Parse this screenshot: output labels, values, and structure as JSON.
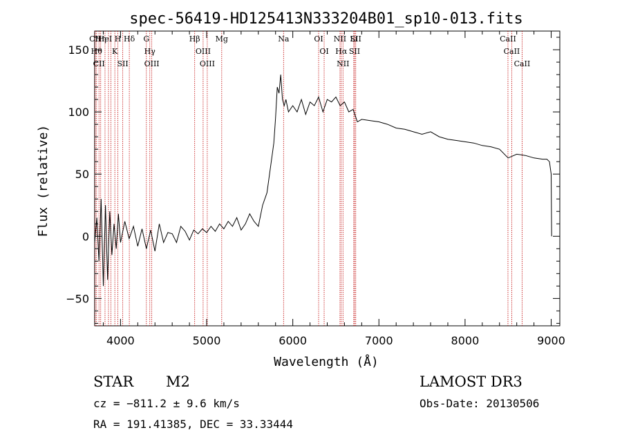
{
  "chart_data": {
    "type": "line",
    "title": "spec-56419-HD125413N333204B01_sp10-013.fits",
    "xlabel": "Wavelength (Å)",
    "ylabel": "Flux (relative)",
    "xlim": [
      3700,
      9100
    ],
    "ylim": [
      -72,
      165
    ],
    "xticks": [
      4000,
      5000,
      6000,
      7000,
      8000,
      9000
    ],
    "xtick_labels": [
      "4000",
      "5000",
      "6000",
      "7000",
      "8000",
      "9000"
    ],
    "yticks": [
      -50,
      0,
      50,
      100,
      150
    ],
    "ytick_labels": [
      "−50",
      "0",
      "50",
      "100",
      "150"
    ],
    "grid": false,
    "series": [
      {
        "color": "#000000",
        "x": [
          3700,
          3725,
          3750,
          3775,
          3800,
          3825,
          3850,
          3875,
          3900,
          3925,
          3950,
          3975,
          4000,
          4050,
          4100,
          4150,
          4200,
          4250,
          4300,
          4350,
          4400,
          4450,
          4500,
          4550,
          4600,
          4650,
          4700,
          4750,
          4800,
          4850,
          4900,
          4950,
          5000,
          5050,
          5100,
          5150,
          5200,
          5250,
          5300,
          5350,
          5400,
          5450,
          5500,
          5550,
          5600,
          5650,
          5700,
          5750,
          5780,
          5800,
          5820,
          5840,
          5860,
          5880,
          5900,
          5920,
          5950,
          6000,
          6050,
          6100,
          6150,
          6200,
          6250,
          6300,
          6350,
          6400,
          6450,
          6500,
          6550,
          6600,
          6650,
          6700,
          6750,
          6800,
          6900,
          7000,
          7100,
          7200,
          7300,
          7400,
          7500,
          7600,
          7700,
          7800,
          7900,
          8000,
          8100,
          8200,
          8300,
          8400,
          8500,
          8600,
          8700,
          8800,
          8900,
          8950,
          8980,
          9000,
          9005
        ],
        "y": [
          -5,
          15,
          -20,
          30,
          -40,
          25,
          -35,
          20,
          -15,
          10,
          -10,
          18,
          -5,
          12,
          -2,
          8,
          -8,
          6,
          -10,
          5,
          -12,
          10,
          -5,
          3,
          2,
          -5,
          8,
          4,
          -3,
          5,
          2,
          6,
          3,
          8,
          4,
          10,
          6,
          12,
          8,
          15,
          5,
          10,
          18,
          12,
          8,
          25,
          35,
          60,
          75,
          95,
          120,
          115,
          130,
          110,
          105,
          110,
          100,
          105,
          100,
          110,
          98,
          108,
          105,
          112,
          100,
          110,
          108,
          112,
          105,
          108,
          100,
          102,
          92,
          94,
          93,
          92,
          90,
          87,
          86,
          84,
          82,
          84,
          80,
          78,
          77,
          76,
          75,
          73,
          72,
          70,
          63,
          66,
          65,
          63,
          62,
          62,
          60,
          50,
          0
        ]
      }
    ],
    "lines": [
      {
        "wl": 3705,
        "label": "CII"
      },
      {
        "wl": 3722,
        "label": "Hθ"
      },
      {
        "wl": 3750,
        "label": "CII"
      },
      {
        "wl": 3770,
        "label": "Hη"
      },
      {
        "wl": 3820,
        "label": "HeI"
      },
      {
        "wl": 3860,
        "label": ""
      },
      {
        "wl": 3889,
        "label": ""
      },
      {
        "wl": 3934,
        "label": "K"
      },
      {
        "wl": 3969,
        "label": "H"
      },
      {
        "wl": 4026,
        "label": "SII"
      },
      {
        "wl": 4102,
        "label": "Hδ"
      },
      {
        "wl": 4300,
        "label": "G"
      },
      {
        "wl": 4340,
        "label": "Hγ"
      },
      {
        "wl": 4363,
        "label": "OIII"
      },
      {
        "wl": 4861,
        "label": "Hβ"
      },
      {
        "wl": 4959,
        "label": "OIII"
      },
      {
        "wl": 5007,
        "label": "OIII"
      },
      {
        "wl": 5175,
        "label": "Mg"
      },
      {
        "wl": 5893,
        "label": "Na"
      },
      {
        "wl": 6300,
        "label": "OI"
      },
      {
        "wl": 6364,
        "label": "OI"
      },
      {
        "wl": 6548,
        "label": "NII"
      },
      {
        "wl": 6563,
        "label": "Hα"
      },
      {
        "wl": 6583,
        "label": "NII"
      },
      {
        "wl": 6708,
        "label": "Li"
      },
      {
        "wl": 6717,
        "label": "SII"
      },
      {
        "wl": 6731,
        "label": "SII"
      },
      {
        "wl": 8498,
        "label": "CaII"
      },
      {
        "wl": 8542,
        "label": "CaII"
      },
      {
        "wl": 8662,
        "label": "CaII"
      }
    ]
  },
  "footer": {
    "class": "STAR",
    "subclass": "M2",
    "survey": "LAMOST DR3",
    "cz": "cz = −811.2 ± 9.6 km/s",
    "obs_date": "Obs-Date: 20130506",
    "coords": "RA = 191.41385, DEC =  33.33444"
  }
}
